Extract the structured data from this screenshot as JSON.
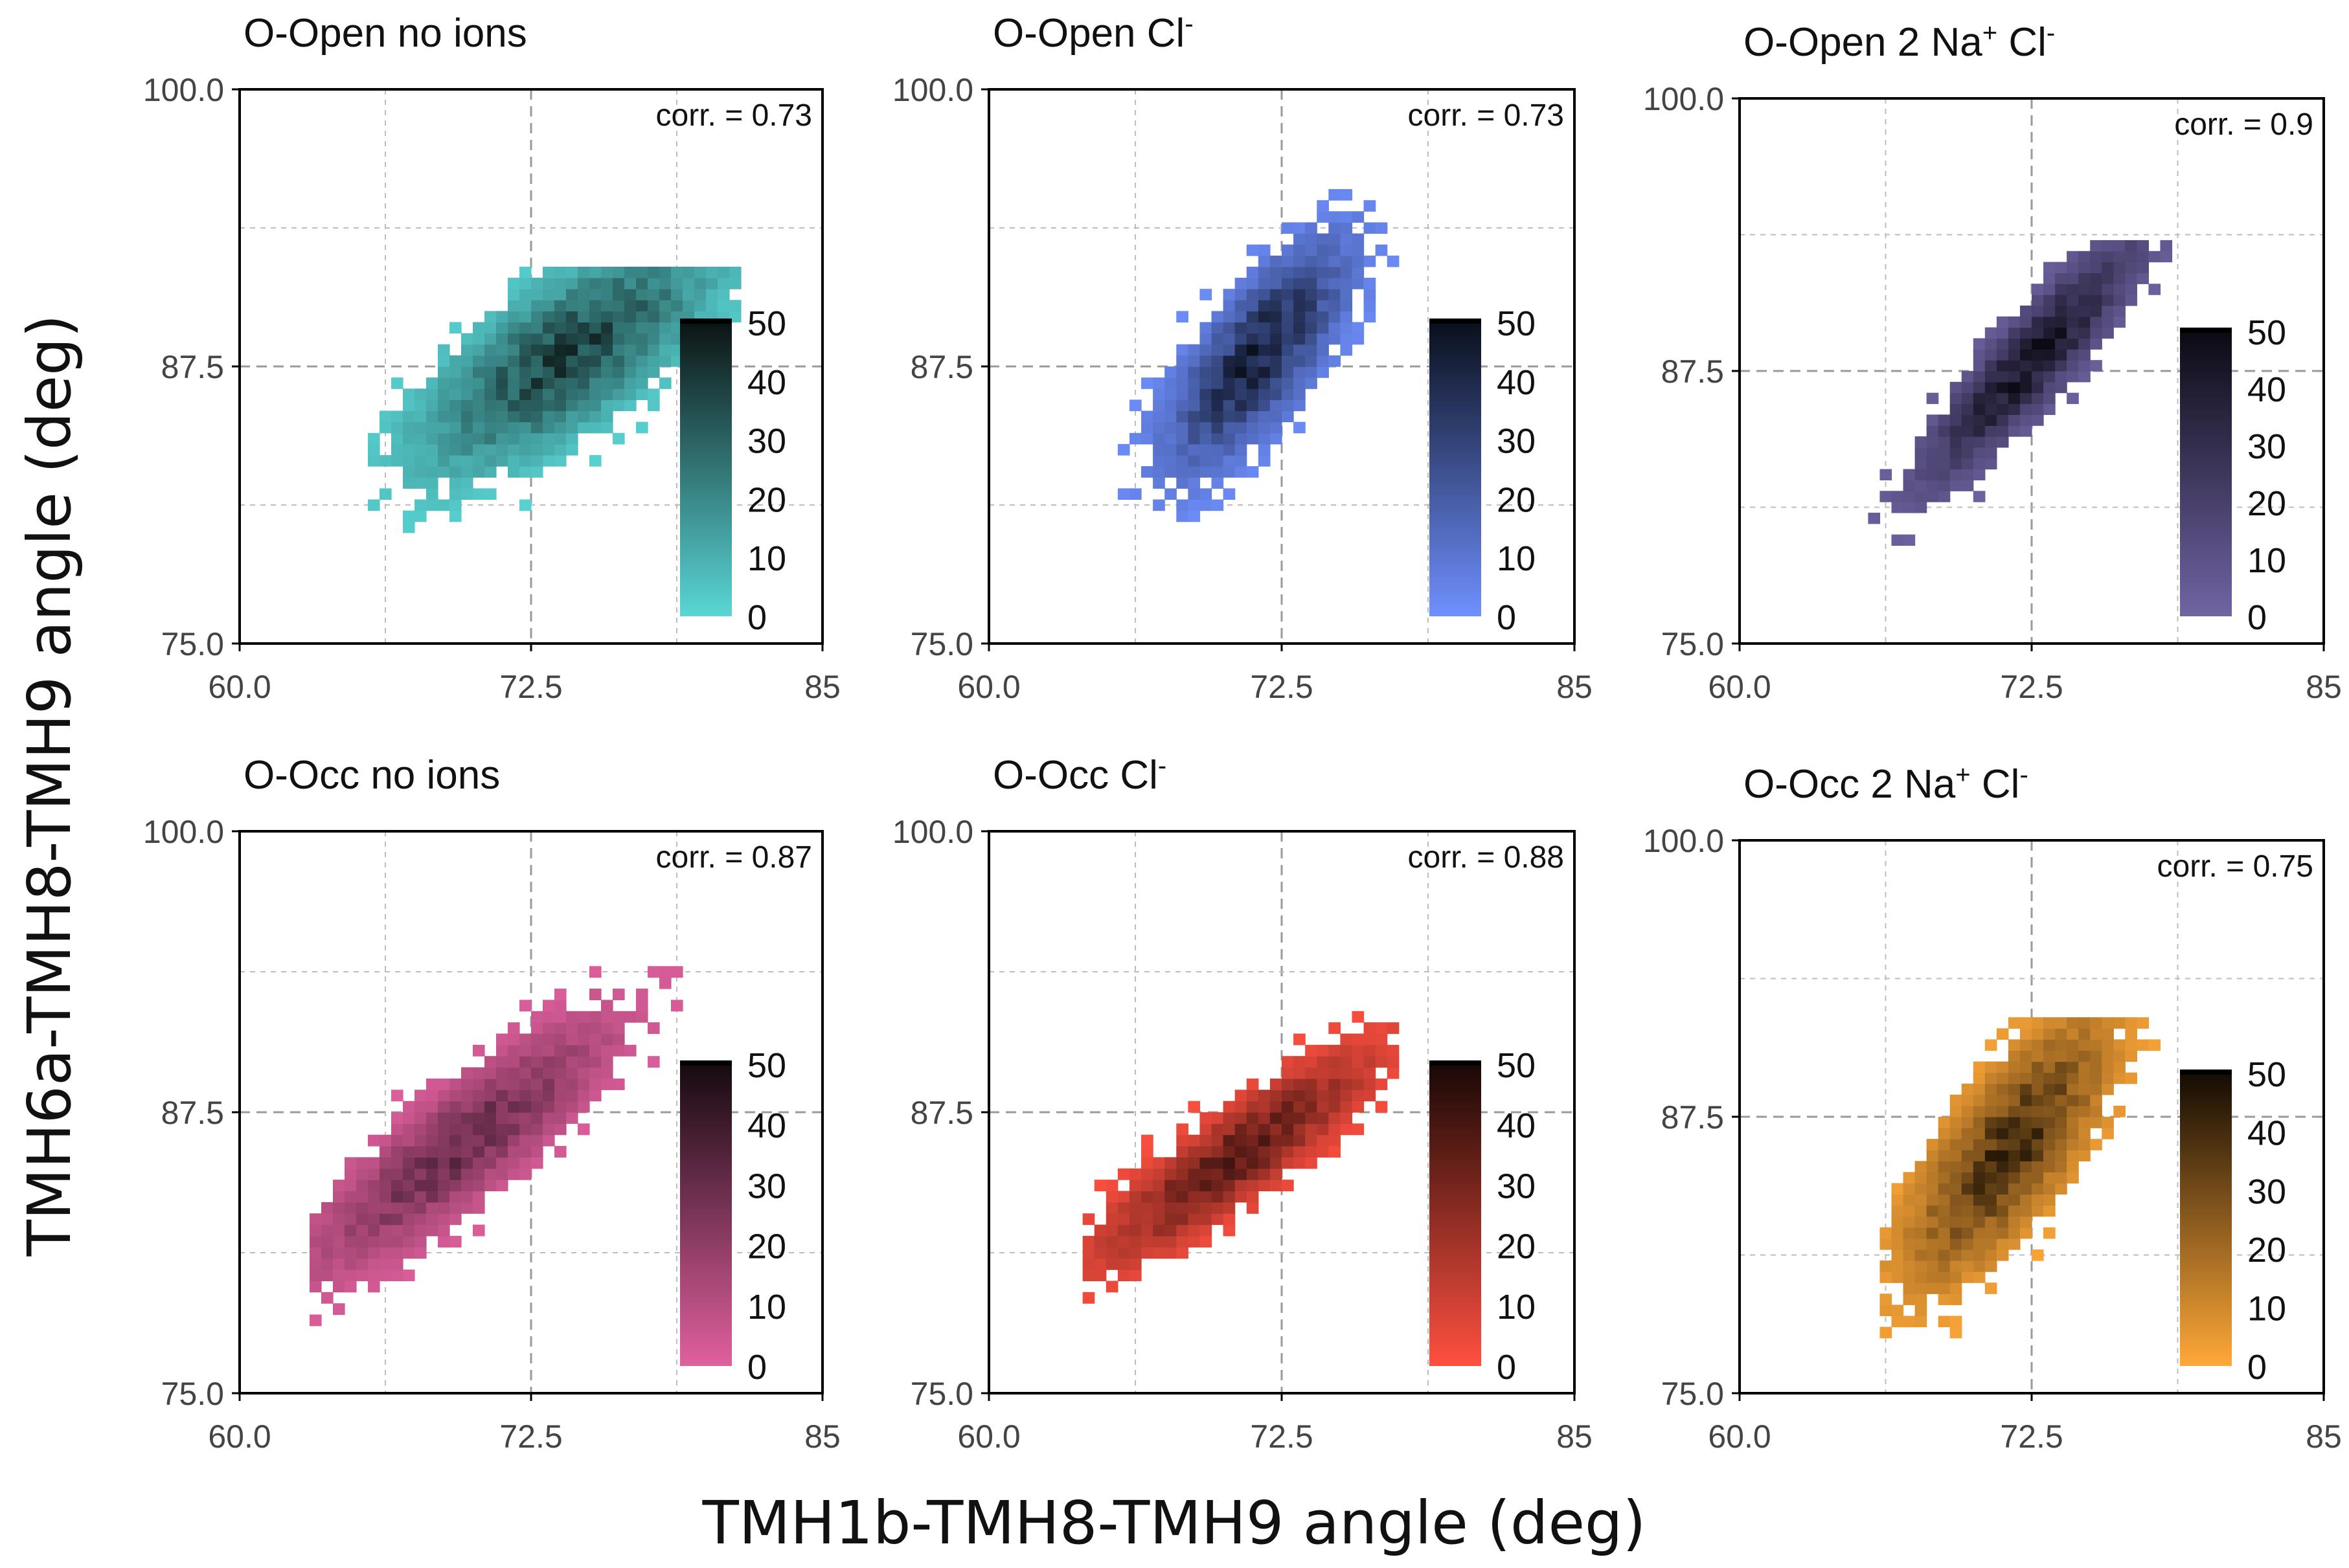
{
  "figure": {
    "xlabel": "TMH1b-TMH8-TMH9 angle (deg)",
    "ylabel": "TMH6a-TMH8-TMH9 angle (deg)",
    "corr_prefix": "corr. ="
  },
  "chart_data": [
    {
      "type": "heatmap",
      "panel": "top-left",
      "title": "O-Open no ions",
      "title_parts": [
        {
          "text": "O-Open no ions",
          "sup": false
        }
      ],
      "xlim": [
        60.0,
        85.0
      ],
      "ylim": [
        75.0,
        100.0
      ],
      "xticks": [
        "60.0",
        "72.5",
        "85"
      ],
      "yticks": [
        "75.0",
        "87.5",
        "100.0"
      ],
      "corr": "0.73",
      "colorbar": {
        "ticks": [
          "0",
          "10",
          "20",
          "30",
          "40",
          "50"
        ],
        "range": [
          0,
          50
        ],
        "color_low": "#5ad6d6",
        "color_high": "#0c1414"
      },
      "distribution": {
        "mean_x": 74.0,
        "mean_y": 88.0,
        "sd_x": 4.0,
        "sd_y": 3.3,
        "corr": 0.73,
        "peak": 38,
        "extent_x": [
          65.5,
          81.5
        ],
        "extent_y": [
          78.0,
          92.0
        ]
      }
    },
    {
      "type": "heatmap",
      "panel": "top-middle",
      "title": "O-Open Cl-",
      "title_parts": [
        {
          "text": "O-Open Cl",
          "sup": false
        },
        {
          "text": "-",
          "sup": true
        }
      ],
      "xlim": [
        60.0,
        85.0
      ],
      "ylim": [
        75.0,
        100.0
      ],
      "xticks": [
        "60.0",
        "72.5",
        "85"
      ],
      "yticks": [
        "75.0",
        "87.5",
        "100.0"
      ],
      "corr": "0.73",
      "colorbar": {
        "ticks": [
          "0",
          "10",
          "20",
          "30",
          "40",
          "50"
        ],
        "range": [
          0,
          50
        ],
        "color_low": "#6f90ff",
        "color_high": "#0a0f1c"
      },
      "distribution": {
        "mean_x": 71.5,
        "mean_y": 88.0,
        "sd_x": 2.5,
        "sd_y": 3.3,
        "corr": 0.73,
        "peak": 42,
        "extent_x": [
          65.0,
          77.5
        ],
        "extent_y": [
          79.0,
          95.5
        ]
      }
    },
    {
      "type": "heatmap",
      "panel": "top-right",
      "title": "O-Open 2 Na+ Cl-",
      "title_parts": [
        {
          "text": "O-Open 2 Na",
          "sup": false
        },
        {
          "text": "+",
          "sup": true
        },
        {
          "text": " Cl",
          "sup": false
        },
        {
          "text": "-",
          "sup": true
        }
      ],
      "xlim": [
        60.0,
        85.0
      ],
      "ylim": [
        75.0,
        100.0
      ],
      "xticks": [
        "60.0",
        "72.5",
        "85"
      ],
      "yticks": [
        "75.0",
        "87.5",
        "100.0"
      ],
      "corr": "0.9",
      "colorbar": {
        "ticks": [
          "0",
          "10",
          "20",
          "30",
          "40",
          "50"
        ],
        "range": [
          0,
          50
        ],
        "color_low": "#7064a4",
        "color_high": "#0c0a14"
      },
      "distribution": {
        "mean_x": 72.5,
        "mean_y": 88.0,
        "sd_x": 3.0,
        "sd_y": 3.6,
        "corr": 0.9,
        "peak": 44,
        "extent_x": [
          64.0,
          80.5
        ],
        "extent_y": [
          79.0,
          93.5
        ]
      }
    },
    {
      "type": "heatmap",
      "panel": "bottom-left",
      "title": "O-Occ no ions",
      "title_parts": [
        {
          "text": "O-Occ no ions",
          "sup": false
        }
      ],
      "xlim": [
        60.0,
        85.0
      ],
      "ylim": [
        75.0,
        100.0
      ],
      "xticks": [
        "60.0",
        "72.5",
        "85"
      ],
      "yticks": [
        "75.0",
        "87.5",
        "100.0"
      ],
      "corr": "0.87",
      "colorbar": {
        "ticks": [
          "0",
          "10",
          "20",
          "30",
          "40",
          "50"
        ],
        "range": [
          0,
          50
        ],
        "color_low": "#e0609e",
        "color_high": "#160a10"
      },
      "distribution": {
        "mean_x": 69.5,
        "mean_y": 86.0,
        "sd_x": 4.2,
        "sd_y": 3.6,
        "corr": 0.87,
        "peak": 30,
        "extent_x": [
          63.0,
          79.5
        ],
        "extent_y": [
          77.5,
          94.5
        ]
      }
    },
    {
      "type": "heatmap",
      "panel": "bottom-middle",
      "title": "O-Occ Cl-",
      "title_parts": [
        {
          "text": "O-Occ Cl",
          "sup": false
        },
        {
          "text": "-",
          "sup": true
        }
      ],
      "xlim": [
        60.0,
        85.0
      ],
      "ylim": [
        75.0,
        100.0
      ],
      "xticks": [
        "60.0",
        "72.5",
        "85"
      ],
      "yticks": [
        "75.0",
        "87.5",
        "100.0"
      ],
      "corr": "0.88",
      "colorbar": {
        "ticks": [
          "0",
          "10",
          "20",
          "30",
          "40",
          "50"
        ],
        "range": [
          0,
          50
        ],
        "color_low": "#ff5040",
        "color_high": "#1a0806"
      },
      "distribution": {
        "mean_x": 70.5,
        "mean_y": 85.5,
        "sd_x": 3.8,
        "sd_y": 3.0,
        "corr": 0.88,
        "peak": 36,
        "extent_x": [
          64.0,
          77.5
        ],
        "extent_y": [
          76.5,
          93.5
        ]
      }
    },
    {
      "type": "heatmap",
      "panel": "bottom-right",
      "title": "O-Occ 2 Na+ Cl-",
      "title_parts": [
        {
          "text": "O-Occ 2 Na",
          "sup": false
        },
        {
          "text": "+",
          "sup": true
        },
        {
          "text": " Cl",
          "sup": false
        },
        {
          "text": "-",
          "sup": true
        }
      ],
      "xlim": [
        60.0,
        85.0
      ],
      "ylim": [
        75.0,
        100.0
      ],
      "xticks": [
        "60.0",
        "72.5",
        "85"
      ],
      "yticks": [
        "75.0",
        "87.5",
        "100.0"
      ],
      "corr": "0.75",
      "colorbar": {
        "ticks": [
          "0",
          "10",
          "20",
          "30",
          "40",
          "50"
        ],
        "range": [
          0,
          50
        ],
        "color_low": "#ffa838",
        "color_high": "#140c04"
      },
      "distribution": {
        "mean_x": 71.5,
        "mean_y": 86.0,
        "sd_x": 2.8,
        "sd_y": 3.8,
        "corr": 0.75,
        "peak": 40,
        "extent_x": [
          66.0,
          78.5
        ],
        "extent_y": [
          77.5,
          92.0
        ]
      }
    }
  ]
}
